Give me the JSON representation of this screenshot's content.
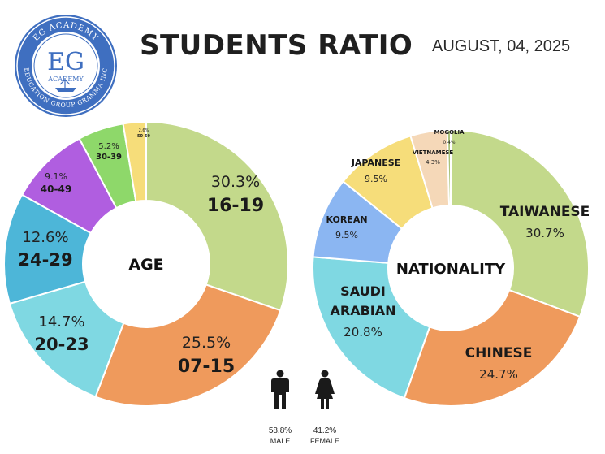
{
  "header": {
    "title": "STUDENTS RATIO",
    "date": "AUGUST, 04, 2025"
  },
  "logo": {
    "top_arc": "EG ACADEMY",
    "monogram": "EG",
    "sub": "ACADEMY",
    "bottom_arc": "EDUCATION GROUP GRAMMA INC"
  },
  "gender": {
    "male_pct": "58.8%",
    "male_label": "MALE",
    "female_pct": "41.2%",
    "female_label": "FEMALE"
  },
  "chart_data": [
    {
      "type": "pie",
      "title": "AGE",
      "slices": [
        {
          "label": "16-19",
          "value": 30.3,
          "pct": "30.3%",
          "color": "#c3d98b"
        },
        {
          "label": "07-15",
          "value": 25.5,
          "pct": "25.5%",
          "color": "#ef9a5c"
        },
        {
          "label": "20-23",
          "value": 14.7,
          "pct": "14.7%",
          "color": "#7fd8e2"
        },
        {
          "label": "24-29",
          "value": 12.6,
          "pct": "12.6%",
          "color": "#4db6d8"
        },
        {
          "label": "40-49",
          "value": 9.1,
          "pct": "9.1%",
          "color": "#b05ee0"
        },
        {
          "label": "30-39",
          "value": 5.2,
          "pct": "5.2%",
          "color": "#8ed86a"
        },
        {
          "label": "50-59",
          "value": 2.6,
          "pct": "2.6%",
          "color": "#f6dd7a"
        }
      ]
    },
    {
      "type": "pie",
      "title": "NATIONALITY",
      "slices": [
        {
          "label": "TAIWANESE",
          "value": 30.7,
          "pct": "30.7%",
          "color": "#c3d98b"
        },
        {
          "label": "CHINESE",
          "value": 24.7,
          "pct": "24.7%",
          "color": "#ef9a5c"
        },
        {
          "label": "SAUDI ARABIAN",
          "value": 20.8,
          "pct": "20.8%",
          "color": "#7fd8e2"
        },
        {
          "label": "KOREAN",
          "value": 9.5,
          "pct": "9.5%",
          "color": "#8bb6f2"
        },
        {
          "label": "JAPANESE",
          "value": 9.5,
          "pct": "9.5%",
          "color": "#f6dd7a"
        },
        {
          "label": "VIETNAMESE",
          "value": 4.3,
          "pct": "4.3%",
          "color": "#f5d8b8"
        },
        {
          "label": "MOGOLIA",
          "value": 0.4,
          "pct": "0.4%",
          "color": "#a9c27a"
        }
      ]
    }
  ]
}
